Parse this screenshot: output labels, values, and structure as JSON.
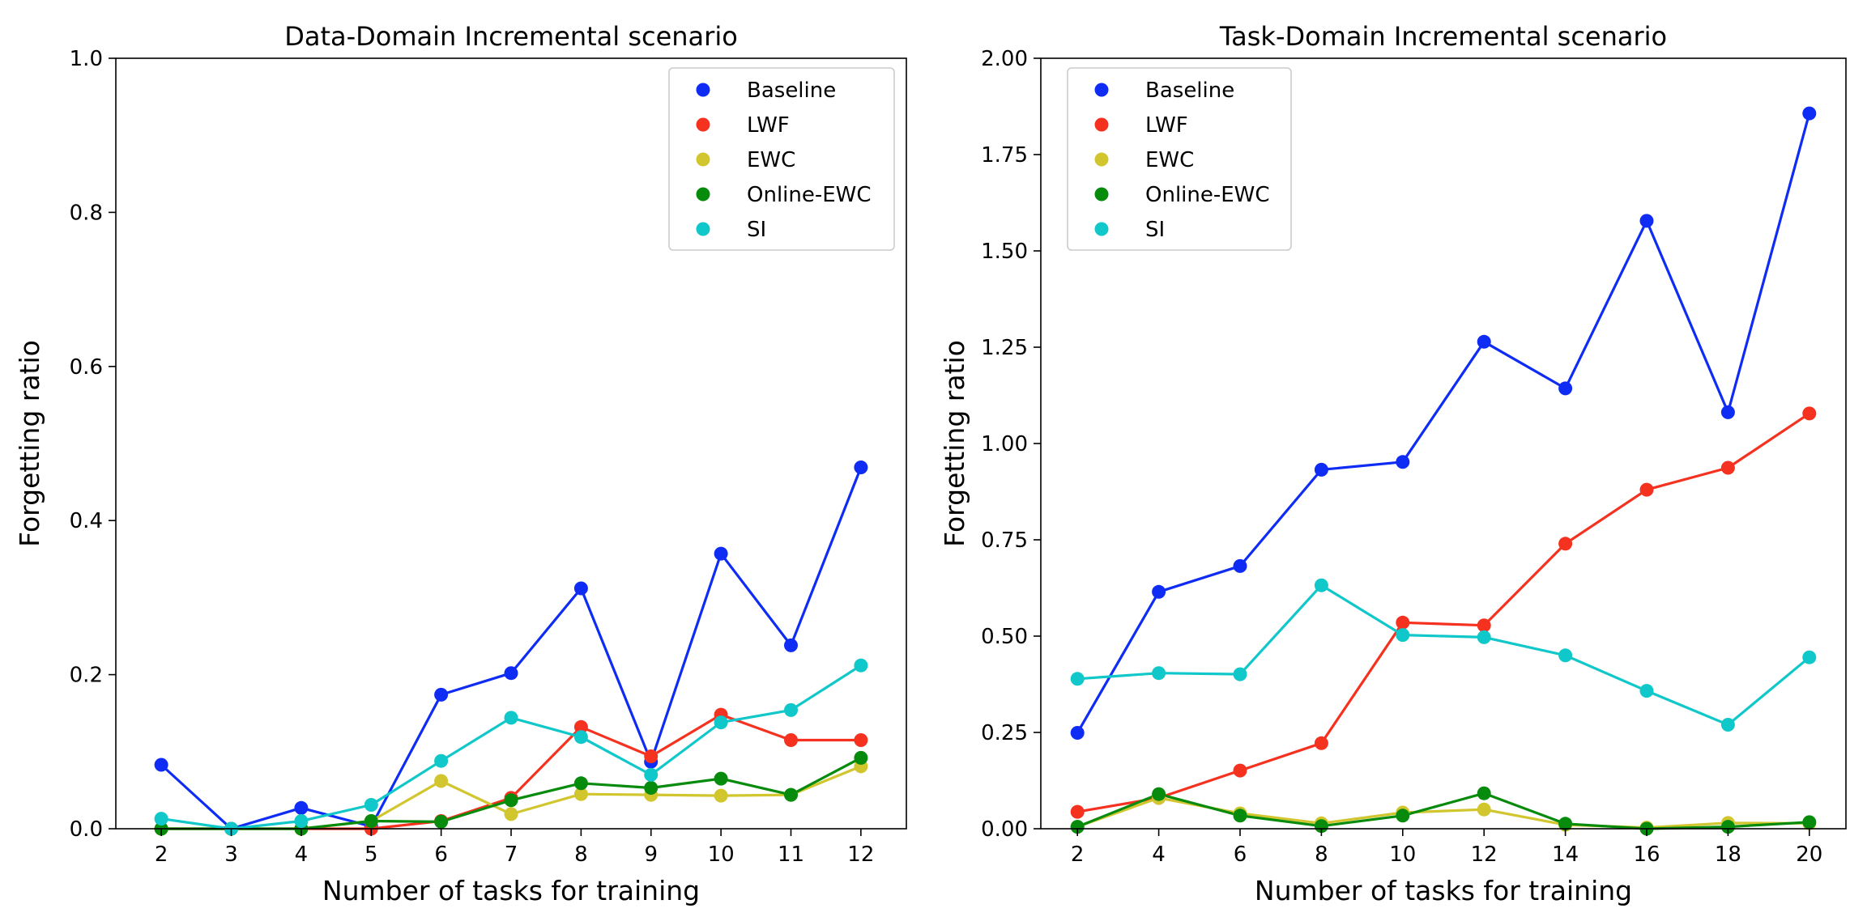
{
  "chart_data": [
    {
      "type": "line",
      "title": "Data-Domain Incremental scenario",
      "xlabel": "Number of tasks for training",
      "ylabel": "Forgetting ratio",
      "x": [
        2,
        3,
        4,
        5,
        6,
        7,
        8,
        9,
        10,
        11,
        12
      ],
      "xticks": [
        "2",
        "3",
        "4",
        "5",
        "6",
        "7",
        "8",
        "9",
        "10",
        "11",
        "12"
      ],
      "xlim": [
        1.35,
        12.65
      ],
      "ylim": [
        0,
        1.0
      ],
      "yticks": [
        "0.0",
        "0.2",
        "0.4",
        "0.6",
        "0.8",
        "1.0"
      ],
      "legend_position": "top-right",
      "series": [
        {
          "name": "Baseline",
          "color": "#0f2cf5",
          "values": [
            0.083,
            0.0,
            0.027,
            0.003,
            0.174,
            0.202,
            0.312,
            0.087,
            0.357,
            0.238,
            0.469
          ]
        },
        {
          "name": "LWF",
          "color": "#f53220",
          "values": [
            0.0,
            0.0,
            0.0,
            0.0,
            0.01,
            0.04,
            0.132,
            0.094,
            0.148,
            0.115,
            0.115
          ]
        },
        {
          "name": "EWC",
          "color": "#d2c62e",
          "values": [
            0.0,
            0.0,
            0.0,
            0.01,
            0.062,
            0.019,
            0.045,
            0.044,
            0.043,
            0.044,
            0.081
          ]
        },
        {
          "name": "Online-EWC",
          "color": "#068b0c",
          "values": [
            0.0,
            0.0,
            0.0,
            0.01,
            0.009,
            0.037,
            0.059,
            0.053,
            0.065,
            0.044,
            0.092
          ]
        },
        {
          "name": "SI",
          "color": "#10c7c9",
          "values": [
            0.013,
            0.0,
            0.01,
            0.031,
            0.088,
            0.144,
            0.119,
            0.07,
            0.138,
            0.154,
            0.212
          ]
        }
      ]
    },
    {
      "type": "line",
      "title": "Task-Domain Incremental scenario",
      "xlabel": "Number of tasks for training",
      "ylabel": "Forgetting ratio",
      "x": [
        2,
        4,
        6,
        8,
        10,
        12,
        14,
        16,
        18,
        20
      ],
      "xticks": [
        "2",
        "4",
        "6",
        "8",
        "10",
        "12",
        "14",
        "16",
        "18",
        "20"
      ],
      "xlim": [
        1.1,
        20.9
      ],
      "ylim": [
        0,
        2.0
      ],
      "yticks": [
        "0.00",
        "0.25",
        "0.50",
        "0.75",
        "1.00",
        "1.25",
        "1.50",
        "1.75",
        "2.00"
      ],
      "legend_position": "top-left",
      "series": [
        {
          "name": "Baseline",
          "color": "#0f2cf5",
          "values": [
            0.249,
            0.615,
            0.682,
            0.932,
            0.952,
            1.264,
            1.143,
            1.578,
            1.081,
            1.857
          ]
        },
        {
          "name": "LWF",
          "color": "#f53220",
          "values": [
            0.044,
            0.08,
            0.151,
            0.222,
            0.535,
            0.528,
            0.74,
            0.88,
            0.937,
            1.078
          ]
        },
        {
          "name": "EWC",
          "color": "#d2c62e",
          "values": [
            0.005,
            0.08,
            0.04,
            0.014,
            0.042,
            0.05,
            0.01,
            0.003,
            0.015,
            0.014
          ]
        },
        {
          "name": "Online-EWC",
          "color": "#068b0c",
          "values": [
            0.005,
            0.09,
            0.034,
            0.007,
            0.034,
            0.092,
            0.013,
            0.0,
            0.005,
            0.017
          ]
        },
        {
          "name": "SI",
          "color": "#10c7c9",
          "values": [
            0.389,
            0.404,
            0.401,
            0.632,
            0.503,
            0.497,
            0.45,
            0.358,
            0.27,
            0.445
          ]
        }
      ]
    }
  ]
}
